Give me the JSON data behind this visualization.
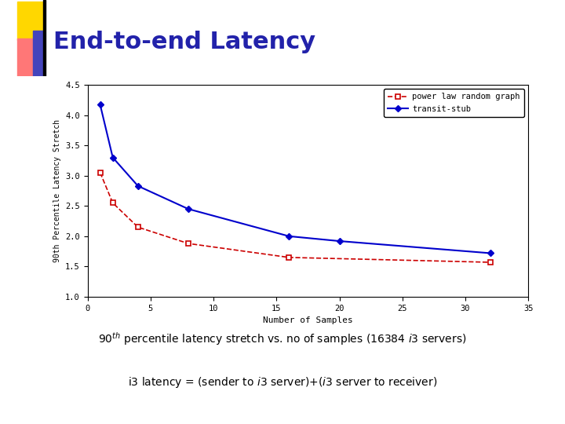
{
  "title": "End-to-end Latency",
  "title_color": "#2222aa",
  "title_fontsize": 22,
  "xlabel": "Number of Samples",
  "ylabel": "90th Percentile Latency Stretch",
  "xlim": [
    0,
    35
  ],
  "ylim": [
    1.0,
    4.5
  ],
  "yticks": [
    1.0,
    1.5,
    2.0,
    2.5,
    3.0,
    3.5,
    4.0,
    4.5
  ],
  "xticks": [
    0,
    5,
    10,
    15,
    20,
    25,
    30,
    35
  ],
  "power_law_x": [
    1,
    2,
    4,
    8,
    16,
    32
  ],
  "power_law_y": [
    3.05,
    2.55,
    2.15,
    1.88,
    1.65,
    1.57
  ],
  "transit_stub_x": [
    1,
    2,
    4,
    8,
    16,
    20,
    32
  ],
  "transit_stub_y": [
    4.17,
    3.3,
    2.83,
    2.45,
    2.0,
    1.92,
    1.72
  ],
  "power_law_color": "#cc0000",
  "transit_stub_color": "#0000cc",
  "power_law_label": "power law random graph",
  "transit_stub_label": "transit-stub",
  "bg_color": "#ffffff",
  "deco_yellow": "#FFD700",
  "deco_red": "#FF7777",
  "deco_blue": "#4444bb"
}
